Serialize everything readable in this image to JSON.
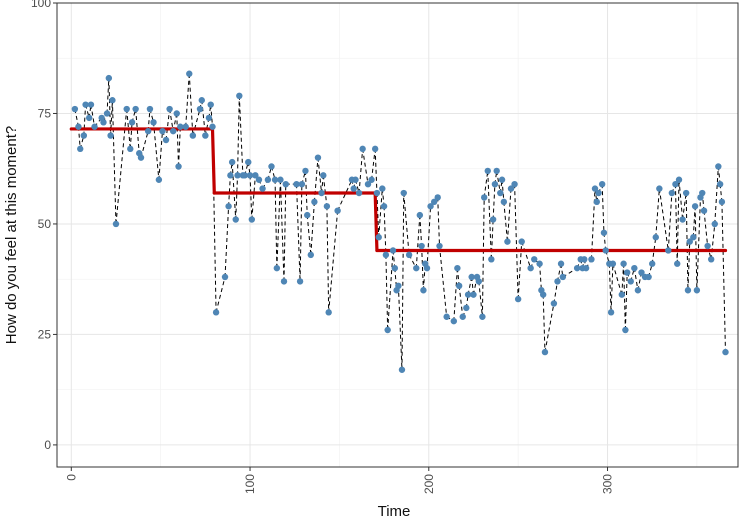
{
  "chart_data": {
    "type": "line",
    "title": "",
    "xlabel": "Time",
    "ylabel": "How do you feel at this moment?",
    "xlim": [
      -8,
      373
    ],
    "ylim": [
      -5,
      100
    ],
    "x_ticks": [
      0,
      100,
      200,
      300
    ],
    "y_ticks": [
      0,
      25,
      50,
      75,
      100
    ],
    "grid": true,
    "legend": "none",
    "colors": {
      "points": "#4f86b5",
      "connector": "#000000",
      "phase_line": "#c00000",
      "panel_border": "#333333",
      "grid": "#e6e6e6"
    },
    "series": [
      {
        "type": "scatter+dashed-line",
        "points": [
          [
            2,
            76
          ],
          [
            4,
            72
          ],
          [
            5,
            67
          ],
          [
            7,
            70
          ],
          [
            8,
            77
          ],
          [
            10,
            74
          ],
          [
            11,
            77
          ],
          [
            13,
            72
          ],
          [
            17,
            74
          ],
          [
            18,
            73
          ],
          [
            20,
            75
          ],
          [
            21,
            83
          ],
          [
            22,
            70
          ],
          [
            23,
            78
          ],
          [
            25,
            50
          ],
          [
            31,
            76
          ],
          [
            33,
            67
          ],
          [
            34,
            73
          ],
          [
            36,
            76
          ],
          [
            38,
            66
          ],
          [
            39,
            65
          ],
          [
            43,
            71
          ],
          [
            44,
            76
          ],
          [
            46,
            73
          ],
          [
            49,
            60
          ],
          [
            51,
            71
          ],
          [
            53,
            69
          ],
          [
            55,
            76
          ],
          [
            57,
            71
          ],
          [
            59,
            75
          ],
          [
            60,
            63
          ],
          [
            61,
            72
          ],
          [
            64,
            72
          ],
          [
            66,
            84
          ],
          [
            68,
            70
          ],
          [
            72,
            76
          ],
          [
            73,
            78
          ],
          [
            75,
            70
          ],
          [
            77,
            74
          ],
          [
            78,
            77
          ],
          [
            79,
            72
          ],
          [
            81,
            30
          ],
          [
            86,
            38
          ],
          [
            88,
            54
          ],
          [
            89,
            61
          ],
          [
            90,
            64
          ],
          [
            92,
            51
          ],
          [
            93,
            61
          ],
          [
            94,
            79
          ],
          [
            96,
            61
          ],
          [
            97,
            61
          ],
          [
            99,
            64
          ],
          [
            100,
            61
          ],
          [
            101,
            51
          ],
          [
            103,
            61
          ],
          [
            105,
            60
          ],
          [
            107,
            58
          ],
          [
            110,
            60
          ],
          [
            112,
            63
          ],
          [
            114,
            60
          ],
          [
            115,
            40
          ],
          [
            117,
            60
          ],
          [
            119,
            37
          ],
          [
            120,
            59
          ],
          [
            126,
            59
          ],
          [
            128,
            37
          ],
          [
            129,
            59
          ],
          [
            131,
            62
          ],
          [
            132,
            52
          ],
          [
            134,
            43
          ],
          [
            136,
            55
          ],
          [
            138,
            65
          ],
          [
            140,
            57
          ],
          [
            141,
            61
          ],
          [
            143,
            54
          ],
          [
            144,
            30
          ],
          [
            149,
            53
          ],
          [
            157,
            60
          ],
          [
            158,
            58
          ],
          [
            159,
            60
          ],
          [
            161,
            57
          ],
          [
            163,
            67
          ],
          [
            166,
            59
          ],
          [
            168,
            60
          ],
          [
            170,
            67
          ],
          [
            171,
            57
          ],
          [
            172,
            47
          ],
          [
            174,
            58
          ],
          [
            175,
            54
          ],
          [
            176,
            43
          ],
          [
            177,
            26
          ],
          [
            180,
            44
          ],
          [
            181,
            40
          ],
          [
            182,
            35
          ],
          [
            183,
            36
          ],
          [
            185,
            17
          ],
          [
            186,
            57
          ],
          [
            189,
            43
          ],
          [
            193,
            40
          ],
          [
            195,
            52
          ],
          [
            196,
            45
          ],
          [
            197,
            35
          ],
          [
            198,
            41
          ],
          [
            199,
            40
          ],
          [
            201,
            54
          ],
          [
            203,
            55
          ],
          [
            205,
            56
          ],
          [
            206,
            45
          ],
          [
            210,
            29
          ],
          [
            214,
            28
          ],
          [
            216,
            40
          ],
          [
            217,
            36
          ],
          [
            219,
            29
          ],
          [
            221,
            31
          ],
          [
            222,
            34
          ],
          [
            224,
            38
          ],
          [
            225,
            34
          ],
          [
            227,
            38
          ],
          [
            228,
            37
          ],
          [
            230,
            29
          ],
          [
            231,
            56
          ],
          [
            233,
            62
          ],
          [
            235,
            42
          ],
          [
            236,
            51
          ],
          [
            237,
            59
          ],
          [
            238,
            62
          ],
          [
            240,
            57
          ],
          [
            241,
            60
          ],
          [
            242,
            55
          ],
          [
            244,
            46
          ],
          [
            246,
            58
          ],
          [
            248,
            59
          ],
          [
            250,
            33
          ],
          [
            252,
            46
          ],
          [
            257,
            40
          ],
          [
            259,
            42
          ],
          [
            262,
            41
          ],
          [
            263,
            35
          ],
          [
            264,
            34
          ],
          [
            265,
            21
          ],
          [
            270,
            32
          ],
          [
            272,
            37
          ],
          [
            274,
            41
          ],
          [
            275,
            38
          ],
          [
            283,
            40
          ],
          [
            285,
            42
          ],
          [
            286,
            40
          ],
          [
            287,
            42
          ],
          [
            288,
            40
          ],
          [
            291,
            42
          ],
          [
            293,
            58
          ],
          [
            294,
            55
          ],
          [
            295,
            57
          ],
          [
            297,
            59
          ],
          [
            298,
            48
          ],
          [
            299,
            44
          ],
          [
            301,
            41
          ],
          [
            302,
            30
          ],
          [
            303,
            41
          ],
          [
            308,
            34
          ],
          [
            309,
            41
          ],
          [
            310,
            26
          ],
          [
            311,
            39
          ],
          [
            313,
            37
          ],
          [
            315,
            40
          ],
          [
            317,
            35
          ],
          [
            319,
            39
          ],
          [
            321,
            38
          ],
          [
            323,
            38
          ],
          [
            325,
            41
          ],
          [
            327,
            47
          ],
          [
            329,
            58
          ],
          [
            334,
            44
          ],
          [
            336,
            57
          ],
          [
            338,
            59
          ],
          [
            339,
            41
          ],
          [
            340,
            60
          ],
          [
            342,
            51
          ],
          [
            344,
            57
          ],
          [
            345,
            35
          ],
          [
            346,
            46
          ],
          [
            348,
            47
          ],
          [
            349,
            54
          ],
          [
            350,
            35
          ],
          [
            352,
            56
          ],
          [
            353,
            57
          ],
          [
            354,
            53
          ],
          [
            356,
            45
          ],
          [
            358,
            42
          ],
          [
            360,
            50
          ],
          [
            362,
            63
          ],
          [
            363,
            59
          ],
          [
            364,
            55
          ],
          [
            366,
            21
          ]
        ]
      },
      {
        "type": "step",
        "points": [
          [
            0,
            71.5
          ],
          [
            79,
            71.5
          ],
          [
            80,
            57
          ],
          [
            170,
            57
          ],
          [
            171,
            44
          ],
          [
            366,
            44
          ]
        ]
      }
    ]
  }
}
